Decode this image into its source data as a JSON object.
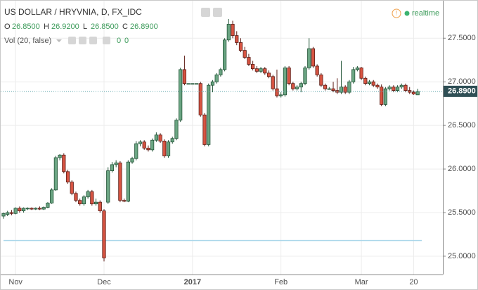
{
  "chart_data": {
    "type": "candlestick",
    "title": "US DOLLAR / HRYVNIA, D, FX_IDC",
    "ohlc_legend": [
      {
        "name": "O",
        "value": {
          "value": 26.85,
          "label": "26.8500"
        }
      },
      {
        "name": "H",
        "value": {
          "value": 26.92,
          "label": "26.9200"
        }
      },
      {
        "name": "L",
        "value": {
          "value": 26.85,
          "label": "26.8500"
        }
      },
      {
        "name": "C",
        "value": {
          "value": 26.89,
          "label": "26.8900"
        }
      }
    ],
    "volume_study": {
      "name": "Vol (20, false)",
      "values": [
        0,
        0
      ]
    },
    "status": "realtime",
    "categories": [
      null,
      null,
      null,
      "Nov",
      null,
      null,
      null,
      null,
      null,
      null,
      null,
      null,
      null,
      null,
      null,
      null,
      null,
      null,
      null,
      null,
      null,
      null,
      null,
      null,
      null,
      "Dec",
      null,
      null,
      null,
      null,
      null,
      null,
      null,
      null,
      null,
      null,
      null,
      null,
      null,
      null,
      null,
      null,
      null,
      null,
      null,
      null,
      null,
      "2017",
      null,
      null,
      null,
      null,
      null,
      null,
      null,
      null,
      null,
      null,
      null,
      null,
      null,
      null,
      null,
      null,
      null,
      null,
      null,
      null,
      null,
      "Feb",
      null,
      null,
      null,
      null,
      null,
      null,
      null,
      null,
      null,
      null,
      null,
      null,
      null,
      null,
      null,
      null,
      null,
      null,
      null,
      "Mar",
      null,
      null,
      null,
      null,
      null,
      null,
      null,
      null,
      null,
      null,
      null,
      null,
      "20",
      null
    ],
    "open": [
      25.46,
      25.48,
      25.5,
      25.49,
      25.55,
      25.52,
      25.55,
      25.55,
      25.54,
      25.55,
      25.54,
      25.56,
      25.61,
      25.76,
      26.13,
      26.16,
      25.97,
      25.85,
      25.72,
      25.64,
      25.6,
      25.68,
      25.74,
      25.6,
      25.62,
      25.52,
      25.62,
      25.98,
      26.05,
      26.07,
      25.64,
      25.63,
      26.08,
      26.12,
      26.29,
      26.31,
      26.24,
      26.22,
      26.33,
      26.39,
      26.32,
      26.15,
      26.31,
      26.35,
      26.56,
      27.14,
      26.98,
      26.98,
      26.98,
      26.98,
      26.62,
      26.28,
      26.96,
      27.0,
      27.08,
      27.14,
      27.48,
      27.66,
      27.53,
      27.45,
      27.36,
      27.28,
      27.2,
      27.15,
      27.12,
      27.15,
      27.1,
      27.06,
      26.92,
      26.84,
      26.85,
      27.16,
      26.98,
      26.92,
      26.94,
      26.98,
      27.16,
      27.38,
      27.18,
      27.08,
      26.96,
      26.92,
      26.92,
      26.9,
      26.88,
      26.94,
      26.88,
      27.0,
      27.14,
      27.16,
      27.04,
      26.98,
      27.0,
      26.96,
      26.94,
      26.74,
      26.92,
      26.94,
      26.9,
      26.94,
      26.96,
      26.9,
      26.88,
      26.85
    ],
    "high": [
      25.5,
      25.52,
      25.53,
      25.56,
      25.57,
      25.56,
      25.56,
      25.56,
      25.56,
      25.57,
      25.57,
      25.62,
      25.78,
      26.15,
      26.17,
      26.18,
      25.99,
      25.87,
      25.74,
      25.66,
      25.7,
      25.76,
      25.76,
      25.66,
      25.64,
      25.54,
      26.02,
      26.08,
      26.1,
      26.09,
      25.66,
      26.1,
      26.14,
      26.32,
      26.33,
      26.33,
      26.27,
      26.35,
      26.42,
      26.41,
      26.34,
      26.33,
      26.37,
      26.58,
      27.16,
      27.3,
      26.98,
      26.98,
      26.98,
      27.0,
      26.64,
      26.98,
      27.02,
      27.1,
      27.16,
      27.5,
      27.72,
      27.7,
      27.58,
      27.5,
      27.4,
      27.32,
      27.24,
      27.18,
      27.17,
      27.17,
      27.13,
      27.08,
      27.14,
      26.88,
      27.18,
      27.18,
      27.0,
      26.96,
      27.0,
      27.18,
      27.5,
      27.4,
      27.2,
      27.1,
      26.98,
      26.94,
      27.0,
      27.04,
      27.24,
      26.96,
      27.02,
      27.17,
      27.18,
      27.17,
      27.06,
      27.02,
      27.02,
      26.98,
      26.97,
      26.94,
      26.96,
      26.96,
      26.96,
      26.98,
      26.98,
      26.94,
      26.9,
      26.92
    ],
    "low": [
      25.43,
      25.46,
      25.47,
      25.48,
      25.5,
      25.5,
      25.53,
      25.53,
      25.53,
      25.53,
      25.53,
      25.55,
      25.6,
      25.75,
      26.1,
      25.95,
      25.83,
      25.7,
      25.62,
      25.58,
      25.58,
      25.66,
      25.58,
      25.58,
      25.5,
      24.94,
      25.6,
      25.96,
      26.02,
      25.62,
      25.62,
      25.62,
      26.06,
      26.1,
      26.26,
      26.22,
      26.2,
      26.2,
      26.31,
      26.3,
      26.13,
      26.13,
      26.29,
      26.33,
      26.54,
      26.96,
      26.98,
      26.98,
      26.98,
      26.6,
      26.26,
      26.26,
      26.88,
      26.98,
      27.06,
      27.12,
      27.46,
      27.5,
      27.42,
      27.34,
      27.26,
      27.18,
      27.13,
      27.1,
      27.1,
      27.08,
      27.04,
      26.9,
      26.82,
      26.82,
      26.83,
      26.96,
      26.9,
      26.9,
      26.88,
      26.96,
      27.14,
      27.16,
      27.06,
      26.94,
      26.9,
      26.92,
      26.88,
      26.86,
      26.86,
      26.86,
      26.86,
      26.98,
      27.12,
      27.02,
      26.96,
      26.96,
      26.94,
      26.92,
      26.72,
      26.72,
      26.9,
      26.88,
      26.88,
      26.92,
      26.88,
      26.86,
      26.85,
      26.85
    ],
    "close": [
      25.49,
      25.5,
      25.49,
      25.55,
      25.52,
      25.55,
      25.55,
      25.54,
      25.55,
      25.54,
      25.56,
      25.61,
      25.76,
      26.13,
      26.16,
      25.97,
      25.85,
      25.72,
      25.64,
      25.6,
      25.68,
      25.74,
      25.6,
      25.62,
      25.52,
      24.98,
      25.98,
      26.05,
      26.07,
      25.64,
      25.63,
      26.08,
      26.12,
      26.29,
      26.31,
      26.24,
      26.22,
      26.33,
      26.39,
      26.32,
      26.15,
      26.31,
      26.35,
      26.56,
      27.14,
      26.98,
      26.98,
      26.98,
      26.98,
      26.62,
      26.28,
      26.96,
      27.0,
      27.08,
      27.14,
      27.48,
      27.66,
      27.53,
      27.45,
      27.36,
      27.28,
      27.2,
      27.15,
      27.12,
      27.15,
      27.1,
      27.06,
      26.92,
      26.84,
      26.85,
      27.16,
      26.98,
      26.92,
      26.94,
      26.98,
      27.16,
      27.38,
      27.18,
      27.08,
      26.96,
      26.92,
      26.92,
      26.9,
      26.88,
      26.94,
      26.88,
      27.0,
      27.14,
      27.16,
      27.04,
      26.98,
      27.0,
      26.96,
      26.94,
      26.74,
      26.92,
      26.94,
      26.9,
      26.94,
      26.96,
      26.9,
      26.88,
      26.86,
      26.89
    ],
    "up_color": "#6ba583",
    "down_color": "#d75442",
    "last_price": {
      "value": 26.89,
      "label": "26.8900"
    },
    "horizontal_line": 25.18,
    "ylim": [
      24.79,
      27.93
    ],
    "yticks": [
      {
        "value": 25.0,
        "label": "25.0000"
      },
      {
        "value": 25.5,
        "label": "25.5000"
      },
      {
        "value": 26.0,
        "label": "26.0000"
      },
      {
        "value": 26.5,
        "label": "26.5000"
      },
      {
        "value": 27.0,
        "label": "27.0000"
      },
      {
        "value": 27.5,
        "label": "27.5000"
      }
    ],
    "grid": true
  }
}
